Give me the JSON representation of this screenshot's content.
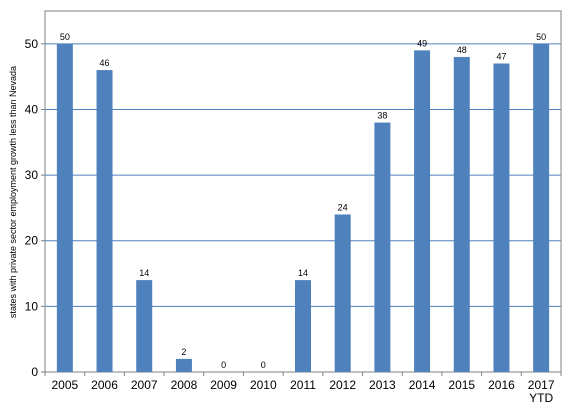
{
  "chart_data": {
    "type": "bar",
    "categories": [
      "2005",
      "2006",
      "2007",
      "2008",
      "2009",
      "2010",
      "2011",
      "2012",
      "2013",
      "2014",
      "2015",
      "2016",
      "2017\nYTD"
    ],
    "values": [
      50,
      46,
      14,
      2,
      0,
      0,
      14,
      24,
      38,
      49,
      48,
      47,
      50
    ],
    "title": "",
    "xlabel": "",
    "ylabel": "states with private sector employment growth less than Nevada",
    "ylim": [
      0,
      55
    ],
    "yticks": [
      0,
      10,
      20,
      30,
      40,
      50
    ],
    "grid": true,
    "legend": "none",
    "colors": {
      "bar": "#4f81bd",
      "grid": "#4f81bd",
      "axis": "#808080"
    }
  }
}
